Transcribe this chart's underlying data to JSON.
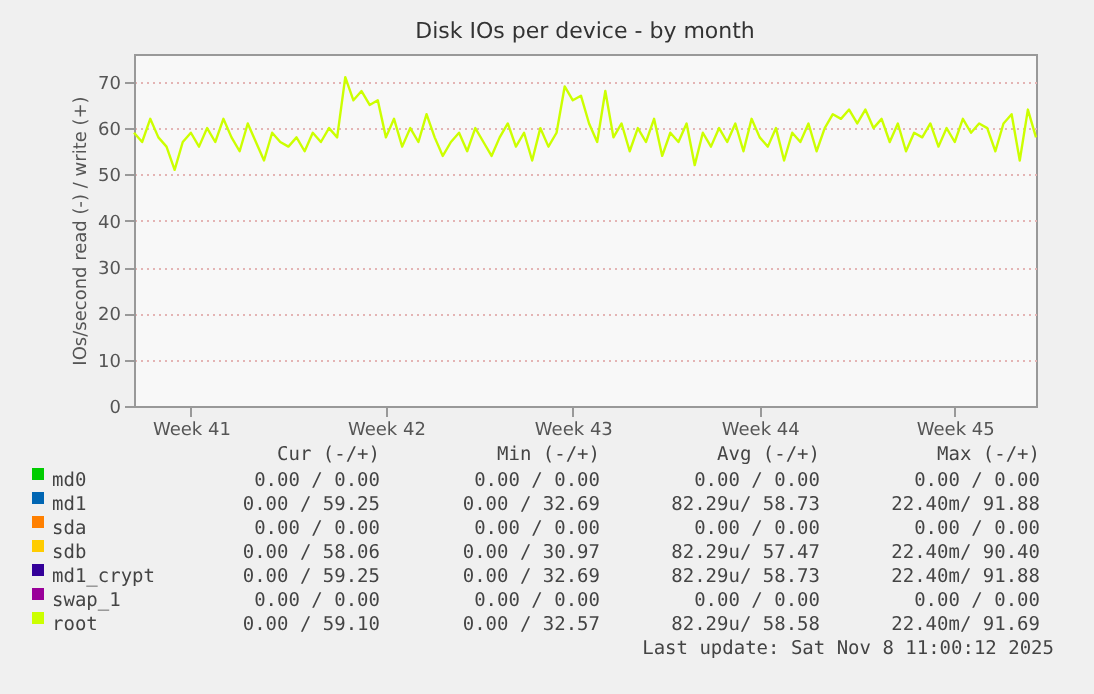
{
  "chart_data": {
    "type": "line",
    "title": "Disk IOs per device - by month",
    "ylabel": "IOs/second read (-) / write (+)",
    "categories": [
      null,
      null,
      null,
      null,
      null,
      null,
      null,
      "Week 41",
      null,
      null,
      null,
      null,
      null,
      null,
      null,
      null,
      null,
      null,
      null,
      null,
      null,
      null,
      null,
      null,
      null,
      null,
      null,
      null,
      null,
      null,
      null,
      "Week 42",
      null,
      null,
      null,
      null,
      null,
      null,
      null,
      null,
      null,
      null,
      null,
      null,
      null,
      null,
      null,
      null,
      null,
      null,
      null,
      null,
      null,
      null,
      "Week 43",
      null,
      null,
      null,
      null,
      null,
      null,
      null,
      null,
      null,
      null,
      null,
      null,
      null,
      null,
      null,
      null,
      null,
      null,
      null,
      null,
      null,
      null,
      "Week 44",
      null,
      null,
      null,
      null,
      null,
      null,
      null,
      null,
      null,
      null,
      null,
      null,
      null,
      null,
      null,
      null,
      null,
      null,
      null,
      null,
      null,
      null,
      null,
      "Week 45",
      null,
      null,
      null,
      null,
      null,
      null,
      null,
      null,
      null,
      null
    ],
    "series": [
      {
        "name": "md0",
        "color": "#00cc00",
        "values": [
          null,
          null,
          null,
          null,
          null,
          null,
          null,
          null,
          null,
          null,
          null,
          null,
          null,
          null,
          null,
          null,
          null,
          null,
          null,
          null,
          null,
          null,
          null,
          null,
          null,
          null,
          null,
          null,
          null,
          null,
          null,
          null,
          null,
          null,
          null,
          null,
          null,
          null,
          null,
          null,
          null,
          null,
          null,
          null,
          null,
          null,
          null,
          null,
          null,
          null,
          null,
          null,
          null,
          null,
          null,
          null,
          null,
          null,
          null,
          null,
          null,
          null,
          null,
          null,
          null,
          null,
          null,
          null,
          null,
          null,
          null,
          null,
          null,
          null,
          null,
          null,
          null,
          null,
          null,
          null,
          null,
          null,
          null,
          null,
          null,
          null,
          null,
          null,
          null,
          null,
          null,
          null,
          null,
          null,
          null,
          null,
          null,
          null,
          null,
          null,
          null,
          null,
          null,
          null,
          null,
          null,
          null,
          null,
          null,
          null,
          null,
          null
        ]
      },
      {
        "name": "md1",
        "color": "#0066b3",
        "values": [
          null,
          null,
          null,
          null,
          null,
          null,
          null,
          null,
          null,
          null,
          null,
          null,
          null,
          null,
          null,
          null,
          null,
          null,
          null,
          null,
          null,
          null,
          null,
          null,
          null,
          null,
          null,
          null,
          null,
          null,
          null,
          null,
          null,
          null,
          null,
          null,
          null,
          null,
          null,
          null,
          null,
          null,
          null,
          null,
          null,
          null,
          null,
          null,
          null,
          null,
          null,
          null,
          null,
          null,
          null,
          null,
          null,
          null,
          null,
          null,
          null,
          null,
          null,
          null,
          null,
          null,
          null,
          null,
          null,
          null,
          null,
          null,
          null,
          null,
          null,
          null,
          null,
          null,
          null,
          null,
          null,
          null,
          null,
          null,
          null,
          null,
          null,
          null,
          null,
          null,
          null,
          null,
          null,
          null,
          null,
          null,
          null,
          null,
          null,
          null,
          null,
          null,
          null,
          null,
          null,
          null,
          null,
          null,
          null,
          null,
          null,
          null
        ]
      },
      {
        "name": "sda",
        "color": "#ff8000",
        "values": [
          null,
          null,
          null,
          null,
          null,
          null,
          null,
          null,
          null,
          null,
          null,
          null,
          null,
          null,
          null,
          null,
          null,
          null,
          null,
          null,
          null,
          null,
          null,
          null,
          null,
          null,
          null,
          null,
          null,
          null,
          null,
          null,
          null,
          null,
          null,
          null,
          null,
          null,
          null,
          null,
          null,
          null,
          null,
          null,
          null,
          null,
          null,
          null,
          null,
          null,
          null,
          null,
          null,
          null,
          null,
          null,
          null,
          null,
          null,
          null,
          null,
          null,
          null,
          null,
          null,
          null,
          null,
          null,
          null,
          null,
          null,
          null,
          null,
          null,
          null,
          null,
          null,
          null,
          null,
          null,
          null,
          null,
          null,
          null,
          null,
          null,
          null,
          null,
          null,
          null,
          null,
          null,
          null,
          null,
          null,
          null,
          null,
          null,
          null,
          null,
          null,
          null,
          null,
          null,
          null,
          null,
          null,
          null,
          null,
          null,
          null,
          null
        ]
      },
      {
        "name": "sdb",
        "color": "#ffcc00",
        "values": [
          null,
          null,
          null,
          null,
          null,
          null,
          null,
          null,
          null,
          null,
          null,
          null,
          null,
          null,
          null,
          null,
          null,
          null,
          null,
          null,
          null,
          null,
          null,
          null,
          null,
          null,
          null,
          null,
          null,
          null,
          null,
          null,
          null,
          null,
          null,
          null,
          null,
          null,
          null,
          null,
          null,
          null,
          null,
          null,
          null,
          null,
          null,
          null,
          null,
          null,
          null,
          null,
          null,
          null,
          null,
          null,
          null,
          null,
          null,
          null,
          null,
          null,
          null,
          null,
          null,
          null,
          null,
          null,
          null,
          null,
          null,
          null,
          null,
          null,
          null,
          null,
          null,
          null,
          null,
          null,
          null,
          null,
          null,
          null,
          null,
          null,
          null,
          null,
          null,
          null,
          null,
          null,
          null,
          null,
          null,
          null,
          null,
          null,
          null,
          null,
          null,
          null,
          null,
          null,
          null,
          null,
          null,
          null,
          null,
          null,
          null,
          null
        ]
      },
      {
        "name": "md1_crypt",
        "color": "#330099",
        "values": [
          null,
          null,
          null,
          null,
          null,
          null,
          null,
          null,
          null,
          null,
          null,
          null,
          null,
          null,
          null,
          null,
          null,
          null,
          null,
          null,
          null,
          null,
          null,
          null,
          null,
          null,
          null,
          null,
          null,
          null,
          null,
          null,
          null,
          null,
          null,
          null,
          null,
          null,
          null,
          null,
          null,
          null,
          null,
          null,
          null,
          null,
          null,
          null,
          null,
          null,
          null,
          null,
          null,
          null,
          null,
          null,
          null,
          null,
          null,
          null,
          null,
          null,
          null,
          null,
          null,
          null,
          null,
          null,
          null,
          null,
          null,
          null,
          null,
          null,
          null,
          null,
          null,
          null,
          null,
          null,
          null,
          null,
          null,
          null,
          null,
          null,
          null,
          null,
          null,
          null,
          null,
          null,
          null,
          null,
          null,
          null,
          null,
          null,
          null,
          null,
          null,
          null,
          null,
          null,
          null,
          null,
          null,
          null,
          null,
          null,
          null,
          null
        ]
      },
      {
        "name": "swap_1",
        "color": "#990099",
        "values": [
          null,
          null,
          null,
          null,
          null,
          null,
          null,
          null,
          null,
          null,
          null,
          null,
          null,
          null,
          null,
          null,
          null,
          null,
          null,
          null,
          null,
          null,
          null,
          null,
          null,
          null,
          null,
          null,
          null,
          null,
          null,
          null,
          null,
          null,
          null,
          null,
          null,
          null,
          null,
          null,
          null,
          null,
          null,
          null,
          null,
          null,
          null,
          null,
          null,
          null,
          null,
          null,
          null,
          null,
          null,
          null,
          null,
          null,
          null,
          null,
          null,
          null,
          null,
          null,
          null,
          null,
          null,
          null,
          null,
          null,
          null,
          null,
          null,
          null,
          null,
          null,
          null,
          null,
          null,
          null,
          null,
          null,
          null,
          null,
          null,
          null,
          null,
          null,
          null,
          null,
          null,
          null,
          null,
          null,
          null,
          null,
          null,
          null,
          null,
          null,
          null,
          null,
          null,
          null,
          null,
          null,
          null,
          null,
          null,
          null,
          null,
          null
        ]
      },
      {
        "name": "root",
        "color": "#ccff00",
        "values": [
          59,
          57,
          62,
          58,
          56,
          51,
          57,
          59,
          56,
          60,
          57,
          62,
          58,
          55,
          61,
          57,
          53,
          59,
          57,
          56,
          58,
          55,
          59,
          57,
          60,
          58,
          71,
          66,
          68,
          65,
          66,
          58,
          62,
          56,
          60,
          57,
          63,
          58,
          54,
          57,
          59,
          55,
          60,
          57,
          54,
          58,
          61,
          56,
          59,
          53,
          60,
          56,
          59,
          69,
          66,
          67,
          61,
          57,
          68,
          58,
          61,
          55,
          60,
          57,
          62,
          54,
          59,
          57,
          61,
          52,
          59,
          56,
          60,
          57,
          61,
          55,
          62,
          58,
          56,
          60,
          53,
          59,
          57,
          61,
          55,
          60,
          63,
          62,
          64,
          61,
          64,
          60,
          62,
          57,
          61,
          55,
          59,
          58,
          61,
          56,
          60,
          57,
          62,
          59,
          61,
          60,
          55,
          61,
          63,
          53,
          64,
          58
        ]
      }
    ],
    "ylim": [
      0,
      76
    ],
    "yticks": [
      0,
      10,
      20,
      30,
      40,
      50,
      60,
      70
    ],
    "grid": "y",
    "legend": "bottom",
    "annotations": [
      "Cur (-/+)",
      "Min (-/+)",
      "Avg (-/+)",
      "Max (-/+)",
      "0.00 /   0.00",
      "0.00 /   0.00",
      "0.00 /   0.00",
      "0.00 /   0.00",
      "0.00 /  59.25",
      "0.00 /  32.69",
      "82.29u/  58.73",
      "22.40m/  91.88",
      "0.00 /   0.00",
      "0.00 /   0.00",
      "0.00 /   0.00",
      "0.00 /   0.00",
      "0.00 /  58.06",
      "0.00 /  30.97",
      "82.29u/  57.47",
      "22.40m/  90.40",
      "0.00 /  59.25",
      "0.00 /  32.69",
      "82.29u/  58.73",
      "22.40m/  91.88",
      "0.00 /   0.00",
      "0.00 /   0.00",
      "0.00 /   0.00",
      "0.00 /   0.00",
      "0.00 /  59.10",
      "0.00 /  32.57",
      "82.29u/  58.58",
      "22.40m/  91.69",
      "Last update: Sat Nov  8 11:00:12 2025"
    ]
  }
}
